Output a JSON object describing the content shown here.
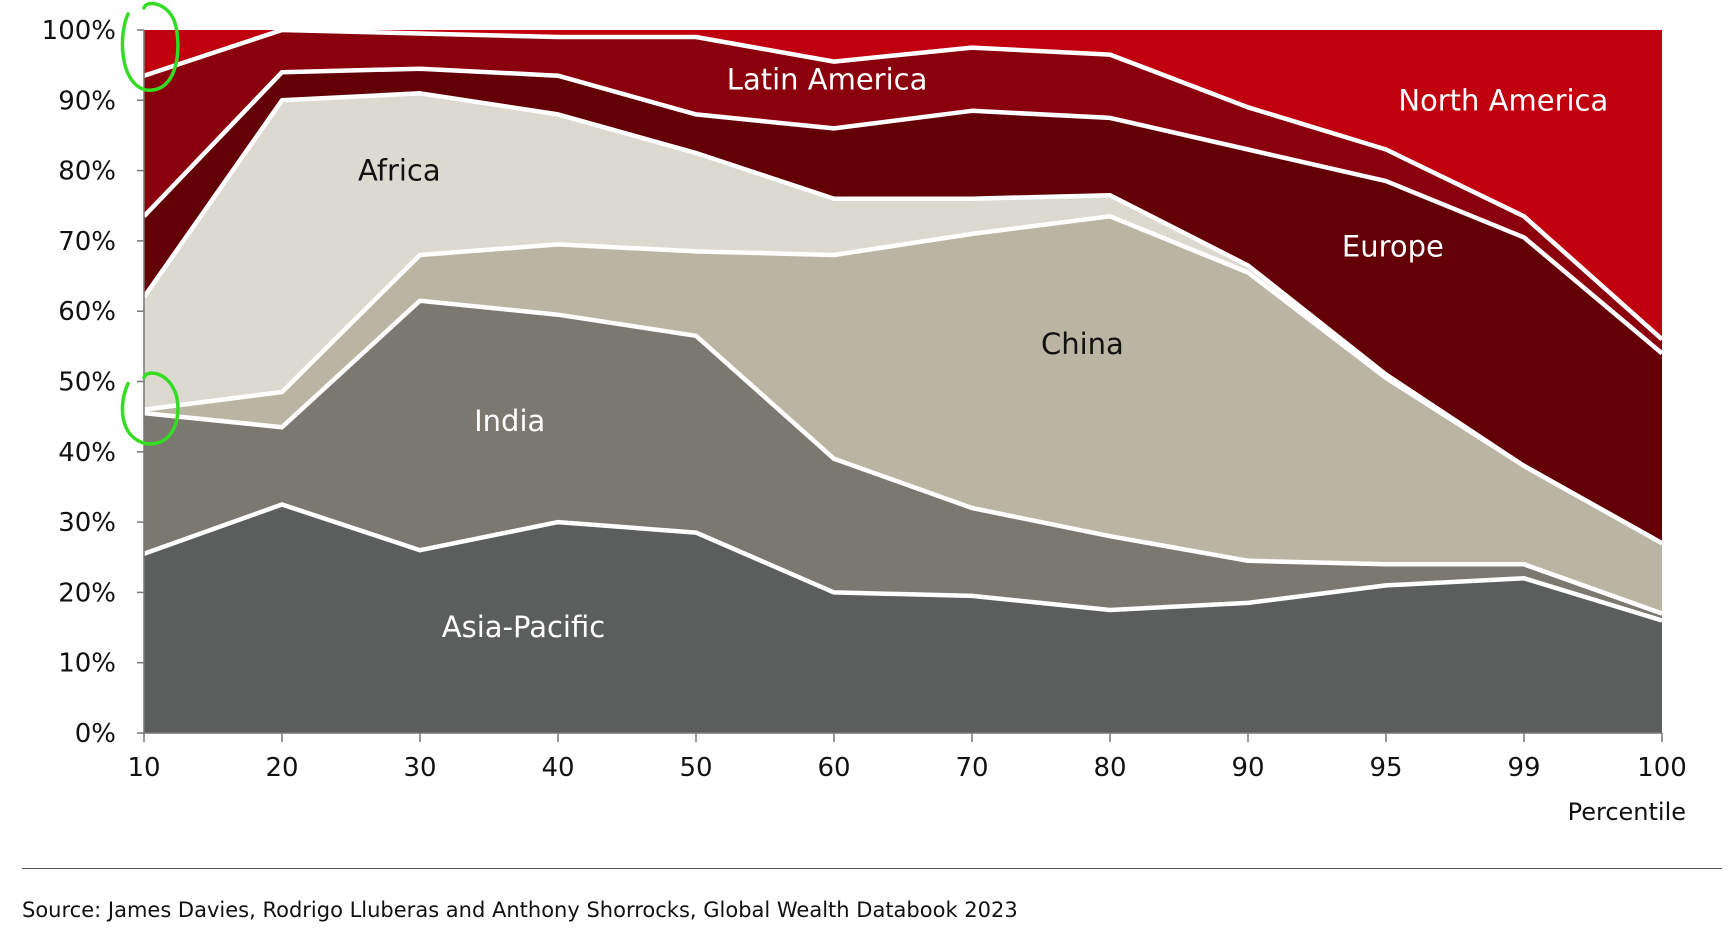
{
  "chart_data": {
    "type": "area",
    "stacked": true,
    "categories": [
      "10",
      "20",
      "30",
      "40",
      "50",
      "60",
      "70",
      "80",
      "90",
      "95",
      "99",
      "100"
    ],
    "y_tick_labels": [
      "0%",
      "10%",
      "20%",
      "30%",
      "40%",
      "50%",
      "60%",
      "70%",
      "80%",
      "90%",
      "100%"
    ],
    "ylim": [
      0,
      100
    ],
    "xlabel": "Percentile",
    "ylabel": "",
    "grid": false,
    "series": [
      {
        "name": "Asia-Pacific",
        "color": "#5b5e5c",
        "label_color": "#ffffff",
        "values": [
          25.5,
          32.5,
          26,
          30,
          28.5,
          20,
          19.5,
          17.5,
          18.5,
          21,
          22,
          16
        ]
      },
      {
        "name": "India",
        "color": "#7a7870",
        "label_color": "#ffffff",
        "values": [
          20,
          11,
          35.5,
          29.5,
          28,
          19,
          12.5,
          10.5,
          6,
          3,
          2,
          1
        ]
      },
      {
        "name": "China",
        "color": "#bab5a3",
        "label_color": "#111111",
        "values": [
          0.5,
          5,
          6.5,
          10,
          12,
          29,
          39,
          45.5,
          41,
          26.5,
          14,
          10
        ]
      },
      {
        "name": "Africa",
        "color": "#dcd9d1",
        "label_color": "#111111",
        "values": [
          16,
          41.5,
          23,
          18.5,
          14,
          8,
          5,
          3,
          1,
          0.5,
          0,
          0
        ]
      },
      {
        "name": "Europe",
        "color": "#630006",
        "label_color": "#ffffff",
        "values": [
          11.5,
          4,
          3.5,
          5.5,
          5.5,
          10,
          12.5,
          11,
          16.5,
          27.5,
          32.5,
          27
        ]
      },
      {
        "name": "Latin America",
        "color": "#8b000d",
        "label_color": "#ffffff",
        "values": [
          20,
          6,
          5,
          5.5,
          11,
          9.5,
          9,
          9,
          6,
          4.5,
          3,
          2
        ]
      },
      {
        "name": "North America",
        "color": "#c0000f",
        "label_color": "#ffffff",
        "values": [
          6.5,
          0,
          0.5,
          1,
          1.5,
          4.5,
          2.5,
          3.5,
          11,
          17,
          26.5,
          44
        ]
      }
    ],
    "annotations": [
      {
        "type": "hand-drawn circle",
        "color": "#33dd22",
        "x": "10",
        "y": 100
      },
      {
        "type": "hand-drawn circle",
        "color": "#33dd22",
        "x": "10",
        "y": 46
      }
    ]
  },
  "source_note": "Source: James Davies, Rodrigo Lluberas and Anthony Shorrocks, Global Wealth Databook 2023"
}
